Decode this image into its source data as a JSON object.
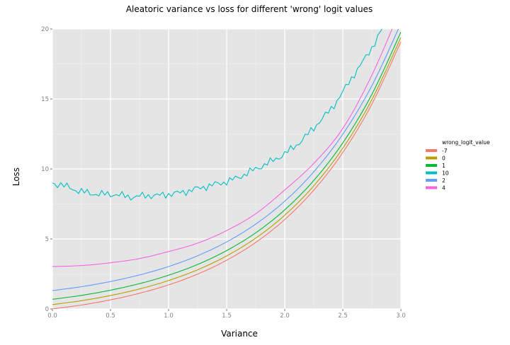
{
  "chart_data": {
    "type": "line",
    "title": "Aleatoric variance vs loss for different 'wrong' logit values",
    "xlabel": "Variance",
    "ylabel": "Loss",
    "xlim": [
      0,
      3
    ],
    "ylim": [
      0,
      20
    ],
    "xticks": [
      "0.0",
      "0.5",
      "1.0",
      "1.5",
      "2.0",
      "2.5",
      "3.0"
    ],
    "yticks": [
      "0",
      "5",
      "10",
      "15",
      "20"
    ],
    "grid": true,
    "legend": {
      "title": "wrong_logit_value",
      "placement": "right"
    },
    "x": [
      0,
      0.25,
      0.5,
      0.75,
      1,
      1.25,
      1.5,
      1.75,
      2,
      2.25,
      2.5,
      2.75,
      3
    ],
    "series": [
      {
        "name": "-7",
        "color": "#F8766D",
        "values": [
          0,
          0.28,
          0.65,
          1.12,
          1.72,
          2.49,
          3.48,
          4.75,
          6.39,
          8.49,
          11.18,
          14.64,
          19.09
        ]
      },
      {
        "name": "0",
        "color": "#B79F00",
        "values": [
          0.31,
          0.59,
          0.96,
          1.43,
          2.03,
          2.8,
          3.79,
          5.06,
          6.7,
          8.8,
          11.49,
          14.95,
          19.4
        ]
      },
      {
        "name": "1",
        "color": "#00BA38",
        "values": [
          0.69,
          0.97,
          1.34,
          1.81,
          2.41,
          3.18,
          4.17,
          5.44,
          7.08,
          9.18,
          11.87,
          15.33,
          19.78
        ]
      },
      {
        "name": "10",
        "color": "#00BFC4",
        "x": [
          0,
          0.1,
          0.2,
          0.3,
          0.4,
          0.5,
          0.6,
          0.7,
          0.8,
          0.9,
          1.0,
          1.1,
          1.2,
          1.3,
          1.4,
          1.5,
          1.6,
          1.7,
          1.8,
          1.9,
          2.0,
          2.1,
          2.2,
          2.3,
          2.4,
          2.5,
          2.6,
          2.7,
          2.8,
          2.9
        ],
        "values": [
          9.0,
          8.8,
          8.5,
          8.3,
          8.2,
          8.2,
          8.1,
          8.0,
          8.1,
          8.1,
          8.2,
          8.3,
          8.5,
          8.7,
          8.9,
          9.1,
          9.4,
          9.8,
          10.2,
          10.6,
          11.1,
          11.7,
          12.5,
          13.4,
          14.3,
          15.5,
          16.8,
          18.0,
          19.4,
          21.0
        ],
        "noisy": true
      },
      {
        "name": "2",
        "color": "#619CFF",
        "values": [
          1.31,
          1.59,
          1.96,
          2.43,
          3.03,
          3.8,
          4.79,
          6.06,
          7.7,
          9.8,
          12.49,
          15.95,
          20.4
        ]
      },
      {
        "name": "4",
        "color": "#F564E3",
        "values": [
          3.03,
          3.1,
          3.3,
          3.6,
          4.1,
          4.7,
          5.6,
          6.8,
          8.5,
          10.4,
          12.9,
          16.7,
          21.5
        ]
      }
    ]
  }
}
